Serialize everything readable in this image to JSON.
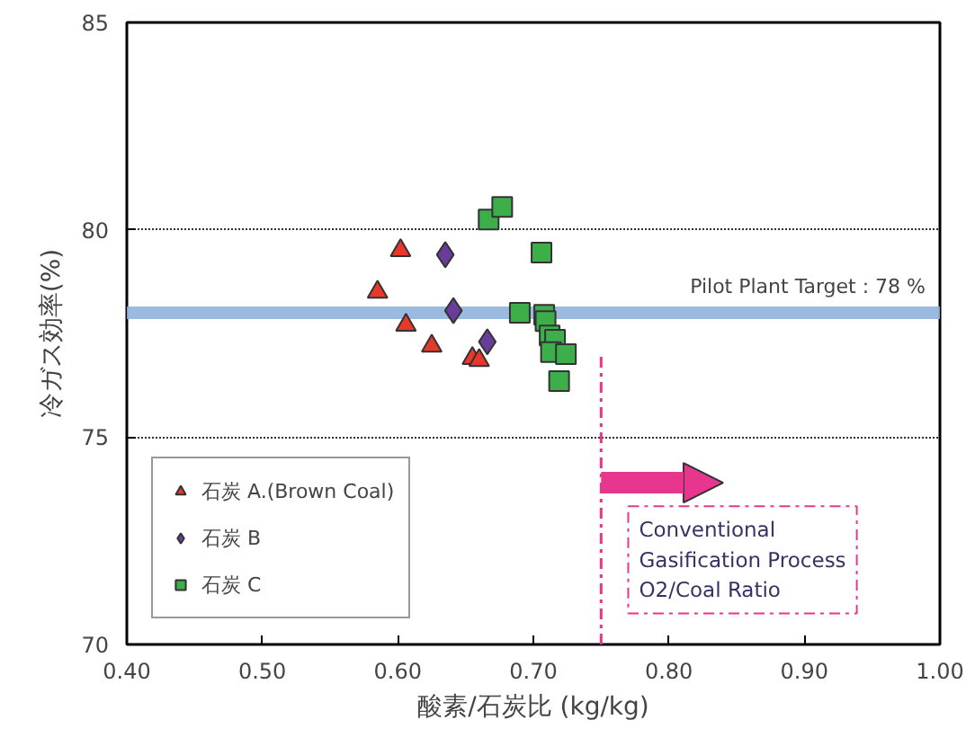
{
  "chart_data": {
    "type": "scatter",
    "xlabel": "酸素/石炭比 (kg/kg)",
    "ylabel": "冷ガス効率(%)",
    "xlim": [
      0.4,
      1.0
    ],
    "xticks": [
      {
        "value": 0.4,
        "label": "0.40"
      },
      {
        "value": 0.5,
        "label": "0.50"
      },
      {
        "value": 0.6,
        "label": "0.60"
      },
      {
        "value": 0.7,
        "label": "0.70"
      },
      {
        "value": 0.8,
        "label": "0.80"
      },
      {
        "value": 0.9,
        "label": "0.90"
      },
      {
        "value": 1.0,
        "label": "1.00"
      }
    ],
    "ylim": [
      70,
      85
    ],
    "yticks": [
      70,
      75,
      80,
      85
    ],
    "grid": "y",
    "legend": "bottom left",
    "series": [
      {
        "name": "石炭 A.(Brown Coal)",
        "color": "#e8382a",
        "marker": "triangle",
        "x": [
          0.602,
          0.585,
          0.606,
          0.625,
          0.655,
          0.66
        ],
        "values": [
          79.5,
          78.5,
          77.7,
          77.2,
          76.9,
          76.85
        ]
      },
      {
        "name": "石炭 B",
        "color": "#6a3d9a",
        "marker": "diamond",
        "x": [
          0.635,
          0.641,
          0.666
        ],
        "values": [
          79.4,
          78.05,
          77.3
        ]
      },
      {
        "name": "石炭 C",
        "color": "#3cae4a",
        "marker": "square",
        "x": [
          0.667,
          0.677,
          0.706,
          0.69,
          0.708,
          0.709,
          0.712,
          0.716,
          0.713,
          0.724,
          0.719
        ],
        "values": [
          80.25,
          80.55,
          79.45,
          78.0,
          77.95,
          77.8,
          77.45,
          77.35,
          77.05,
          77.0,
          76.35
        ]
      }
    ],
    "ref_lines": [
      {
        "axis": "y",
        "value": 78,
        "label": "Pilot Plant Target : 78 %",
        "color": "#8fb4dc",
        "line_style": "solid"
      },
      {
        "axis": "x",
        "value": 0.75,
        "label": "Conventional\nGasification Process\nO2/Coal Ratio",
        "color": "#e8368f",
        "line_style": "dashed"
      }
    ]
  }
}
